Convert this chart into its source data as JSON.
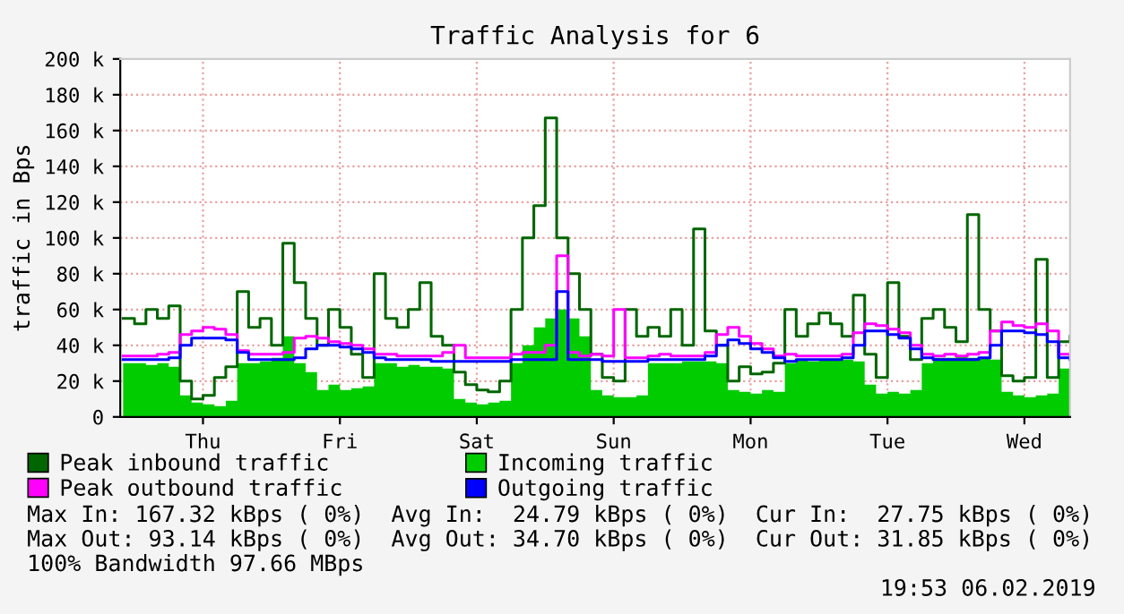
{
  "chart_data": {
    "type": "step",
    "title": "Traffic Analysis for 6",
    "ylabel": "traffic in Bps",
    "categories": [
      null,
      null,
      null,
      null,
      null,
      null,
      null,
      "Thu",
      null,
      null,
      null,
      null,
      null,
      null,
      null,
      null,
      null,
      null,
      null,
      "Fri",
      null,
      null,
      null,
      null,
      null,
      null,
      null,
      null,
      null,
      null,
      null,
      "Sat",
      null,
      null,
      null,
      null,
      null,
      null,
      null,
      null,
      null,
      null,
      null,
      "Sun",
      null,
      null,
      null,
      null,
      null,
      null,
      null,
      null,
      null,
      null,
      null,
      "Mon",
      null,
      null,
      null,
      null,
      null,
      null,
      null,
      null,
      null,
      null,
      null,
      "Tue",
      null,
      null,
      null,
      null,
      null,
      null,
      null,
      null,
      null,
      null,
      null,
      "Wed",
      null,
      null,
      null,
      null
    ],
    "series": [
      {
        "name": "Peak inbound traffic",
        "color": "#006600",
        "values": [
          55,
          52,
          60,
          55,
          62,
          20,
          10,
          12,
          22,
          28,
          70,
          50,
          55,
          40,
          97,
          75,
          55,
          40,
          60,
          50,
          35,
          22,
          80,
          55,
          50,
          60,
          75,
          45,
          40,
          25,
          18,
          15,
          14,
          20,
          60,
          100,
          118,
          167,
          100,
          80,
          60,
          35,
          22,
          20,
          60,
          45,
          50,
          45,
          60,
          40,
          105,
          48,
          40,
          20,
          28,
          24,
          25,
          30,
          60,
          45,
          52,
          58,
          52,
          45,
          68,
          35,
          22,
          75,
          45,
          32,
          55,
          60,
          50,
          42,
          113,
          60,
          48,
          23,
          20,
          22,
          88,
          22,
          42,
          45
        ]
      },
      {
        "name": "Peak outbound traffic",
        "color": "#ff00ff",
        "values": [
          34,
          34,
          34,
          35,
          36,
          46,
          48,
          50,
          49,
          46,
          37,
          35,
          35,
          35,
          36,
          44,
          45,
          44,
          42,
          41,
          40,
          38,
          35,
          35,
          34,
          34,
          34,
          34,
          36,
          40,
          33,
          33,
          33,
          33,
          35,
          36,
          36,
          40,
          90,
          36,
          34,
          35,
          34,
          60,
          33,
          33,
          34,
          35,
          34,
          34,
          34,
          36,
          46,
          50,
          45,
          41,
          38,
          34,
          35,
          34,
          34,
          34,
          34,
          35,
          47,
          52,
          51,
          49,
          47,
          40,
          35,
          34,
          35,
          34,
          35,
          36,
          48,
          53,
          51,
          50,
          52,
          48,
          35,
          34
        ]
      },
      {
        "name": "Incoming traffic",
        "type": "area",
        "color": "#00cc00",
        "values": [
          30,
          30,
          29,
          30,
          28,
          12,
          8,
          7,
          6,
          9,
          30,
          30,
          31,
          33,
          45,
          30,
          25,
          15,
          18,
          15,
          16,
          17,
          30,
          30,
          28,
          29,
          28,
          28,
          27,
          10,
          8,
          7,
          8,
          9,
          30,
          40,
          50,
          55,
          60,
          55,
          45,
          15,
          12,
          11,
          11,
          12,
          30,
          30,
          30,
          31,
          31,
          31,
          30,
          15,
          14,
          13,
          15,
          14,
          30,
          32,
          31,
          32,
          32,
          32,
          31,
          18,
          13,
          14,
          13,
          15,
          30,
          33,
          33,
          34,
          33,
          33,
          32,
          14,
          12,
          11,
          12,
          13,
          27,
          28
        ]
      },
      {
        "name": "Outgoing traffic",
        "color": "#0000ff",
        "values": [
          32,
          32,
          32,
          32,
          33,
          40,
          44,
          44,
          44,
          43,
          36,
          32,
          32,
          32,
          32,
          33,
          38,
          40,
          40,
          39,
          38,
          36,
          33,
          32,
          32,
          32,
          32,
          31,
          31,
          31,
          31,
          31,
          31,
          31,
          32,
          32,
          32,
          32,
          70,
          32,
          32,
          32,
          31,
          31,
          31,
          31,
          32,
          32,
          32,
          32,
          32,
          34,
          40,
          43,
          41,
          38,
          36,
          33,
          31,
          32,
          32,
          32,
          32,
          33,
          40,
          48,
          48,
          46,
          44,
          38,
          33,
          32,
          32,
          32,
          32,
          33,
          40,
          48,
          48,
          47,
          46,
          42,
          33,
          32
        ]
      }
    ],
    "ylim": [
      0,
      200
    ],
    "yticks": [
      0,
      {
        "value": 20,
        "label": "20 k"
      },
      {
        "value": 40,
        "label": "40 k"
      },
      {
        "value": 60,
        "label": "60 k"
      },
      {
        "value": 80,
        "label": "80 k"
      },
      {
        "value": 100,
        "label": "100 k"
      },
      {
        "value": 120,
        "label": "120 k"
      },
      {
        "value": 140,
        "label": "140 k"
      },
      {
        "value": 160,
        "label": "160 k"
      },
      {
        "value": 180,
        "label": "180 k"
      },
      {
        "value": 200,
        "label": "200 k"
      }
    ],
    "grid": true,
    "legend": "bottom",
    "annotations": [
      "Max In: 167.32 kBps ( 0%)  Avg In:  24.79 kBps ( 0%)  Cur In:  27.75 kBps ( 0%)",
      "Max Out: 93.14 kBps ( 0%)  Avg Out: 34.70 kBps ( 0%)  Cur Out: 31.85 kBps ( 0%)",
      "100% Bandwidth 97.66 MBps",
      "19:53 06.02.2019"
    ]
  }
}
